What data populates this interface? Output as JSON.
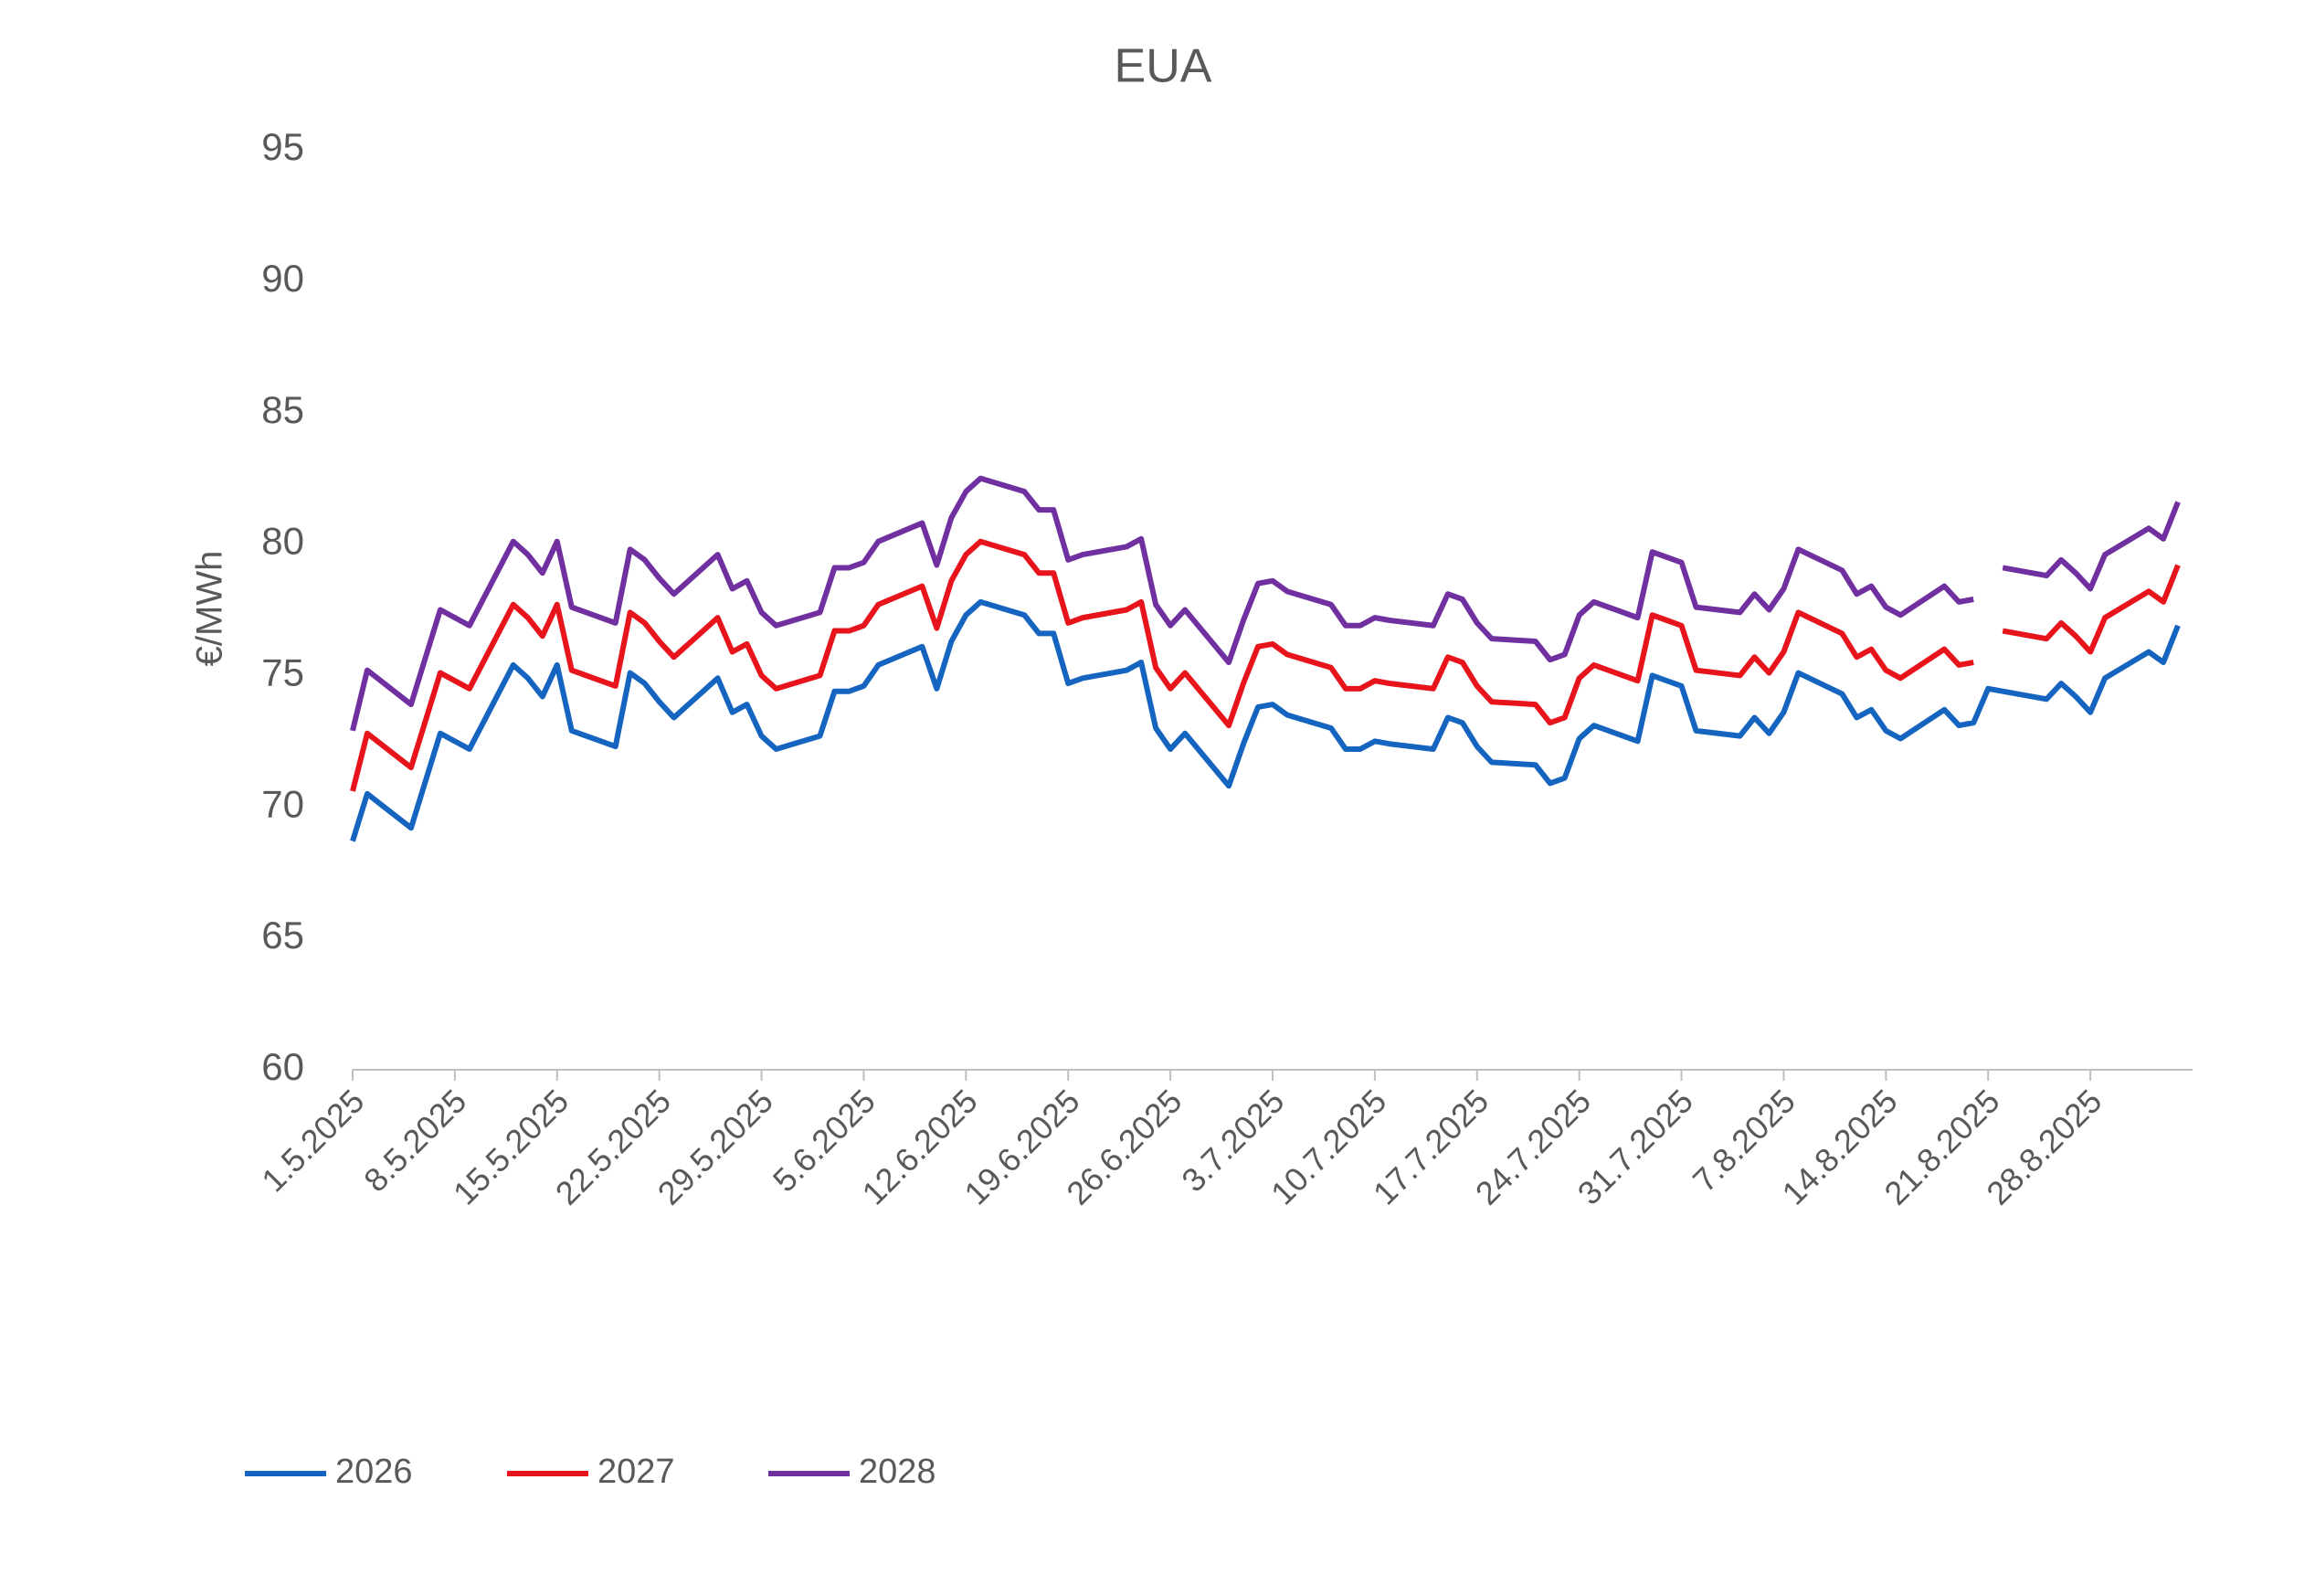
{
  "chart_data": {
    "type": "line",
    "title": "EUA",
    "y_label": "€/MWh",
    "x": [
      "1.5.2025",
      "2.5.2025",
      "5.5.2025",
      "6.5.2025",
      "7.5.2025",
      "8.5.2025",
      "9.5.2025",
      "12.5.2025",
      "13.5.2025",
      "14.5.2025",
      "15.5.2025",
      "16.5.2025",
      "19.5.2025",
      "20.5.2025",
      "21.5.2025",
      "22.5.2025",
      "23.5.2025",
      "26.5.2025",
      "27.5.2025",
      "28.5.2025",
      "29.5.2025",
      "30.5.2025",
      "2.6.2025",
      "3.6.2025",
      "4.6.2025",
      "5.6.2025",
      "6.6.2025",
      "9.6.2025",
      "10.6.2025",
      "11.6.2025",
      "12.6.2025",
      "13.6.2025",
      "16.6.2025",
      "17.6.2025",
      "18.6.2025",
      "19.6.2025",
      "20.6.2025",
      "23.6.2025",
      "24.6.2025",
      "25.6.2025",
      "26.6.2025",
      "27.6.2025",
      "30.6.2025",
      "1.7.2025",
      "2.7.2025",
      "3.7.2025",
      "4.7.2025",
      "7.7.2025",
      "8.7.2025",
      "9.7.2025",
      "10.7.2025",
      "11.7.2025",
      "14.7.2025",
      "15.7.2025",
      "16.7.2025",
      "17.7.2025",
      "18.7.2025",
      "21.7.2025",
      "22.7.2025",
      "23.7.2025",
      "24.7.2025",
      "25.7.2025",
      "28.7.2025",
      "29.7.2025",
      "30.7.2025",
      "31.7.2025",
      "1.8.2025",
      "4.8.2025",
      "5.8.2025",
      "6.8.2025",
      "7.8.2025",
      "8.8.2025",
      "11.8.2025",
      "12.8.2025",
      "13.8.2025",
      "14.8.2025",
      "15.8.2025",
      "18.8.2025",
      "19.8.2025",
      "20.8.2025",
      "21.8.2025",
      "22.8.2025",
      "25.8.2025",
      "26.8.2025",
      "27.8.2025",
      "28.8.2025",
      "29.8.2025",
      "1.9.2025",
      "2.9.2025",
      "3.9.2025"
    ],
    "series": [
      {
        "name": "2026",
        "color": "#1565c0",
        "values": [
          68.7,
          70.5,
          69.2,
          71.0,
          72.8,
          72.5,
          72.2,
          75.4,
          74.9,
          74.2,
          75.4,
          72.9,
          72.3,
          75.1,
          74.7,
          74.0,
          73.4,
          74.9,
          73.6,
          73.9,
          72.7,
          72.2,
          72.7,
          74.4,
          74.4,
          74.6,
          75.4,
          76.1,
          74.5,
          76.3,
          77.3,
          77.8,
          77.3,
          76.6,
          76.6,
          74.7,
          74.9,
          75.2,
          75.5,
          73.0,
          72.2,
          72.8,
          70.8,
          72.4,
          73.8,
          73.9,
          73.5,
          73.0,
          72.2,
          72.2,
          72.5,
          72.4,
          72.2,
          73.4,
          73.2,
          72.3,
          71.7,
          71.6,
          70.9,
          71.1,
          72.6,
          73.1,
          72.5,
          75.0,
          74.8,
          74.6,
          72.9,
          72.7,
          73.4,
          72.8,
          73.6,
          75.1,
          74.3,
          73.4,
          73.7,
          72.9,
          72.6,
          73.7,
          73.1,
          73.2,
          74.5,
          74.4,
          74.1,
          74.7,
          74.2,
          73.6,
          74.9,
          75.9,
          75.5,
          76.9
        ]
      },
      {
        "name": "2027",
        "color": "#e8141c",
        "values": [
          70.6,
          72.8,
          71.5,
          73.3,
          75.1,
          74.8,
          74.5,
          77.7,
          77.2,
          76.5,
          77.7,
          75.2,
          74.6,
          77.4,
          77.0,
          76.3,
          75.7,
          77.2,
          75.9,
          76.2,
          75.0,
          74.5,
          75.0,
          76.7,
          76.7,
          76.9,
          77.7,
          78.4,
          76.8,
          78.6,
          79.6,
          80.1,
          79.6,
          78.9,
          78.9,
          77.0,
          77.2,
          77.5,
          77.8,
          75.3,
          74.5,
          75.1,
          73.1,
          74.7,
          76.1,
          76.2,
          75.8,
          75.3,
          74.5,
          74.5,
          74.8,
          74.7,
          74.5,
          75.7,
          75.5,
          74.6,
          74.0,
          73.9,
          73.2,
          73.4,
          74.9,
          75.4,
          74.8,
          77.3,
          77.1,
          76.9,
          75.2,
          75.0,
          75.7,
          75.1,
          75.9,
          77.4,
          76.6,
          75.7,
          76.0,
          75.2,
          74.9,
          76.0,
          75.4,
          75.5,
          null,
          76.7,
          76.4,
          77.0,
          76.5,
          75.9,
          77.2,
          78.2,
          77.8,
          79.2
        ]
      },
      {
        "name": "2028",
        "color": "#7030a0",
        "values": [
          72.9,
          75.2,
          73.9,
          75.7,
          77.5,
          77.2,
          76.9,
          80.1,
          79.6,
          78.9,
          80.1,
          77.6,
          77.0,
          79.8,
          79.4,
          78.7,
          78.1,
          79.6,
          78.3,
          78.6,
          77.4,
          76.9,
          77.4,
          79.1,
          79.1,
          79.3,
          80.1,
          80.8,
          79.2,
          81.0,
          82.0,
          82.5,
          82.0,
          81.3,
          81.3,
          79.4,
          79.6,
          79.9,
          80.2,
          77.7,
          76.9,
          77.5,
          75.5,
          77.1,
          78.5,
          78.6,
          78.2,
          77.7,
          76.9,
          76.9,
          77.2,
          77.1,
          76.9,
          78.1,
          77.9,
          77.0,
          76.4,
          76.3,
          75.6,
          75.8,
          77.3,
          77.8,
          77.2,
          79.7,
          79.5,
          79.3,
          77.6,
          77.4,
          78.1,
          77.5,
          78.3,
          79.8,
          79.0,
          78.1,
          78.4,
          77.6,
          77.3,
          78.4,
          77.8,
          77.9,
          null,
          79.1,
          78.8,
          79.4,
          78.9,
          78.3,
          79.6,
          80.6,
          80.2,
          81.6
        ]
      }
    ],
    "xlim": [
      "1.5.2025",
      "4.9.2025"
    ],
    "xticks": [
      "1.5.2025",
      "8.5.2025",
      "15.5.2025",
      "22.5.2025",
      "29.5.2025",
      "5.6.2025",
      "12.6.2025",
      "19.6.2025",
      "26.6.2025",
      "3.7.2025",
      "10.7.2025",
      "17.7.2025",
      "24.7.2025",
      "31.7.2025",
      "7.8.2025",
      "14.8.2025",
      "21.8.2025",
      "28.8.2025"
    ],
    "ylim": [
      60,
      95
    ],
    "yticks": [
      60,
      65,
      70,
      75,
      80,
      85,
      90,
      95
    ],
    "grid": false,
    "legend": "bottom"
  }
}
